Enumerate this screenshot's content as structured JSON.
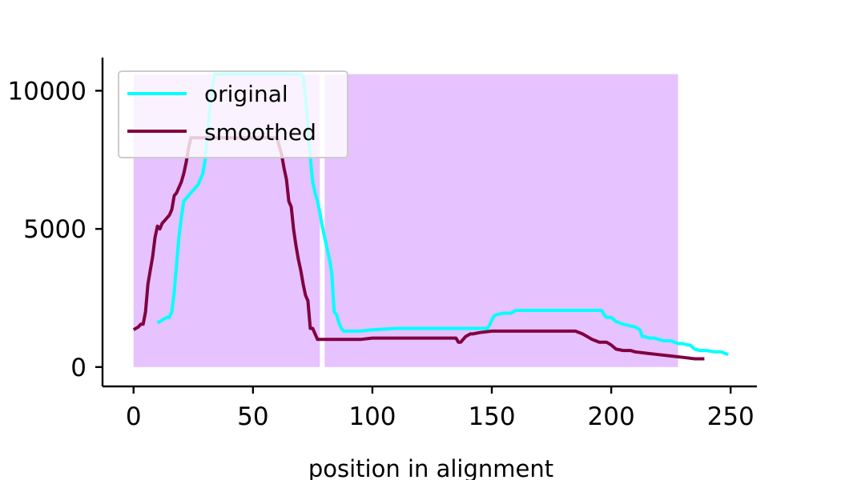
{
  "chart_data": {
    "type": "line",
    "title": "",
    "xlabel": "position in alignment",
    "ylabel": "",
    "xlim": [
      -13,
      261
    ],
    "ylim": [
      -700,
      11200
    ],
    "xticks": [
      0,
      50,
      100,
      150,
      200,
      250
    ],
    "yticks": [
      0,
      5000,
      10000
    ],
    "ytick_labels": [
      "0",
      "5000",
      "10000"
    ],
    "grid": false,
    "legend": "top-left",
    "highlight_regions": [
      {
        "x": [
          0,
          78
        ],
        "y": [
          0,
          10600
        ],
        "color": "#e6c2ff"
      },
      {
        "x": [
          80,
          228
        ],
        "y": [
          0,
          10600
        ],
        "color": "#e6c2ff"
      }
    ],
    "series": [
      {
        "name": "original",
        "color": "#00ffff",
        "x": [
          10,
          12,
          14,
          15,
          16,
          17,
          18,
          19,
          20,
          21,
          22,
          23,
          24,
          25,
          26,
          27,
          28,
          29,
          30,
          31,
          32,
          33,
          34,
          40,
          50,
          60,
          68,
          70,
          71,
          72,
          73,
          74,
          75,
          76,
          77,
          78,
          79,
          80,
          81,
          82,
          83,
          84,
          85,
          86,
          87,
          88,
          89,
          90,
          95,
          100,
          110,
          120,
          130,
          140,
          146,
          148,
          149,
          150,
          151,
          152,
          155,
          158,
          160,
          165,
          170,
          180,
          190,
          196,
          197,
          198,
          200,
          202,
          205,
          210,
          212,
          213,
          214,
          216,
          218,
          220,
          222,
          225,
          228,
          230,
          232,
          233,
          235,
          237,
          240,
          243,
          246,
          249
        ],
        "values": [
          1600,
          1700,
          1800,
          1800,
          2000,
          2700,
          3700,
          4700,
          5400,
          6000,
          6100,
          6200,
          6300,
          6400,
          6500,
          6600,
          6800,
          7000,
          7500,
          8500,
          9400,
          10100,
          10600,
          10600,
          10600,
          10600,
          10600,
          10600,
          10500,
          9800,
          8700,
          7600,
          6700,
          6300,
          6000,
          5600,
          5100,
          4700,
          4300,
          3900,
          3400,
          2000,
          1900,
          1600,
          1400,
          1300,
          1300,
          1300,
          1300,
          1350,
          1400,
          1400,
          1400,
          1400,
          1400,
          1400,
          1500,
          1700,
          1850,
          1900,
          1950,
          1950,
          2050,
          2050,
          2050,
          2050,
          2050,
          2050,
          1900,
          1800,
          1800,
          1650,
          1550,
          1450,
          1350,
          1100,
          1100,
          1050,
          1050,
          1000,
          950,
          950,
          850,
          850,
          800,
          800,
          650,
          600,
          600,
          550,
          550,
          450
        ]
      },
      {
        "name": "smoothed",
        "color": "#800040",
        "x": [
          0,
          2,
          3,
          4,
          5,
          6,
          7,
          8,
          9,
          10,
          11,
          12,
          13,
          14,
          15,
          16,
          17,
          18,
          19,
          20,
          21,
          22,
          23,
          24,
          25,
          26,
          27,
          30,
          40,
          50,
          59,
          60,
          61,
          62,
          63,
          64,
          65,
          66,
          67,
          68,
          69,
          70,
          71,
          72,
          73,
          74,
          75,
          76,
          77,
          78,
          80,
          85,
          90,
          95,
          100,
          110,
          120,
          130,
          135,
          136,
          137,
          138,
          139,
          140,
          141,
          142,
          145,
          150,
          160,
          170,
          180,
          185,
          188,
          190,
          192,
          195,
          197,
          198,
          200,
          202,
          205,
          208,
          210,
          215,
          220,
          225,
          230,
          235,
          239
        ],
        "values": [
          1350,
          1450,
          1550,
          1550,
          2000,
          3000,
          3500,
          4000,
          4700,
          5100,
          5000,
          5200,
          5300,
          5400,
          5500,
          5700,
          6200,
          6300,
          6500,
          6700,
          7000,
          7400,
          7900,
          8300,
          8300,
          8300,
          8300,
          8300,
          8300,
          8300,
          8300,
          8300,
          8000,
          7700,
          7200,
          6800,
          6000,
          5800,
          5000,
          4400,
          3900,
          3500,
          3000,
          2600,
          2400,
          1400,
          1400,
          1200,
          1000,
          1000,
          1000,
          1000,
          1000,
          1000,
          1050,
          1050,
          1050,
          1050,
          1050,
          900,
          900,
          1000,
          1100,
          1150,
          1200,
          1200,
          1250,
          1300,
          1300,
          1300,
          1300,
          1300,
          1200,
          1100,
          1000,
          900,
          900,
          900,
          800,
          650,
          600,
          600,
          550,
          500,
          450,
          400,
          350,
          300,
          300
        ]
      }
    ]
  }
}
